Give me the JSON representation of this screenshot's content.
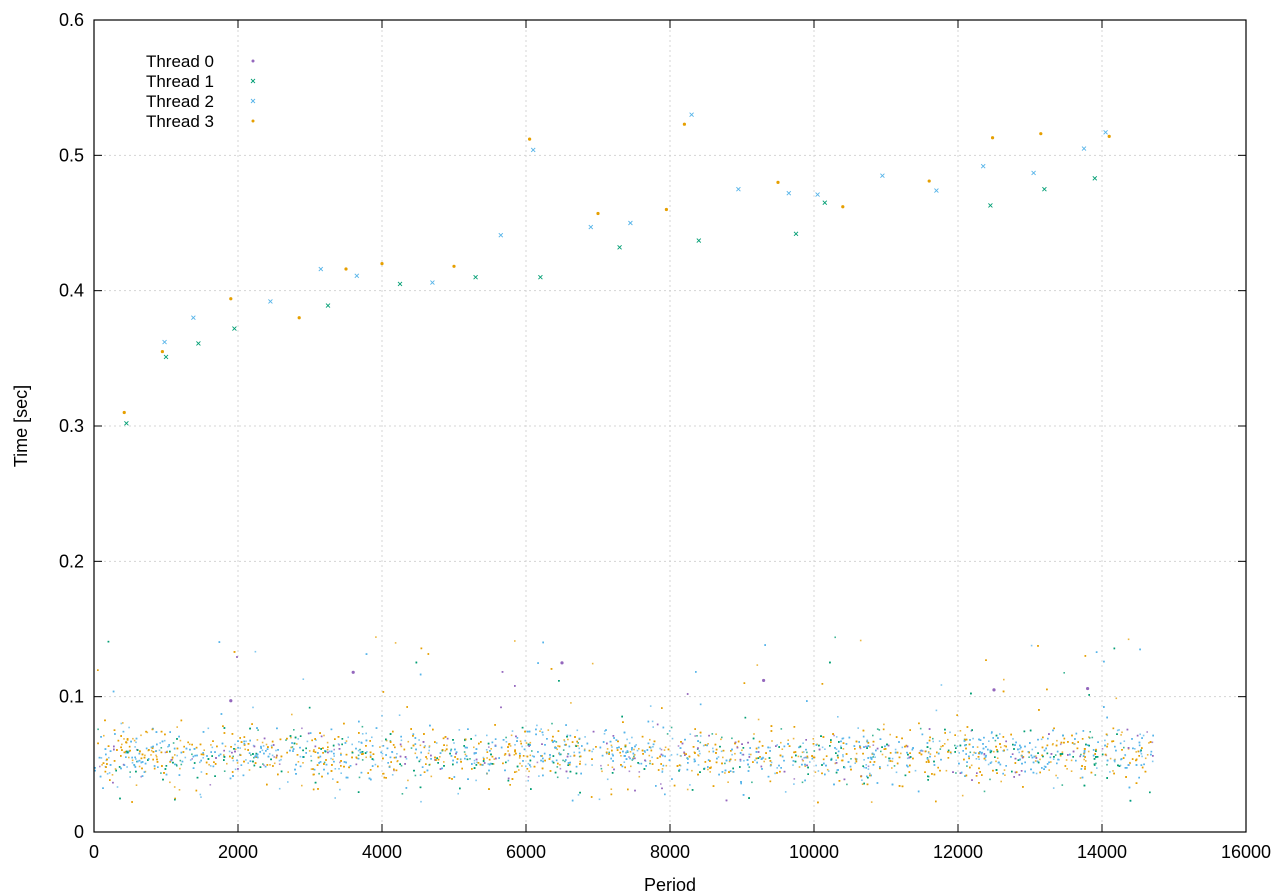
{
  "chart_data": {
    "type": "scatter",
    "title": "",
    "xlabel": "Period",
    "ylabel": "Time [sec]",
    "xlim": [
      0,
      16000
    ],
    "ylim": [
      0,
      0.6
    ],
    "xticks": [
      "0",
      "2000",
      "4000",
      "6000",
      "8000",
      "10000",
      "12000",
      "14000",
      "16000"
    ],
    "yticks": [
      "0",
      "0.1",
      "0.2",
      "0.3",
      "0.4",
      "0.5",
      "0.6"
    ],
    "grid": true,
    "legend_position": "top-left",
    "band": {
      "x_range": [
        0,
        14700
      ],
      "center": 0.058,
      "spread": 0.022
    },
    "series": [
      {
        "name": "Thread 0",
        "color": "#9467bd",
        "marker": "dot",
        "points": [
          [
            1900,
            0.097
          ],
          [
            3600,
            0.118
          ],
          [
            6500,
            0.125
          ],
          [
            9300,
            0.112
          ],
          [
            12500,
            0.105
          ],
          [
            13800,
            0.106
          ]
        ]
      },
      {
        "name": "Thread 1",
        "color": "#009e73",
        "marker": "x",
        "points": [
          [
            450,
            0.302
          ],
          [
            1000,
            0.351
          ],
          [
            1450,
            0.361
          ],
          [
            1950,
            0.372
          ],
          [
            3250,
            0.389
          ],
          [
            4250,
            0.405
          ],
          [
            5300,
            0.41
          ],
          [
            6200,
            0.41
          ],
          [
            7300,
            0.432
          ],
          [
            8400,
            0.437
          ],
          [
            9750,
            0.442
          ],
          [
            10150,
            0.465
          ],
          [
            12450,
            0.463
          ],
          [
            13200,
            0.475
          ],
          [
            13900,
            0.483
          ]
        ]
      },
      {
        "name": "Thread 2",
        "color": "#56b4e9",
        "marker": "x",
        "points": [
          [
            980,
            0.362
          ],
          [
            1380,
            0.38
          ],
          [
            2450,
            0.392
          ],
          [
            3150,
            0.416
          ],
          [
            3650,
            0.411
          ],
          [
            4700,
            0.406
          ],
          [
            5650,
            0.441
          ],
          [
            6100,
            0.504
          ],
          [
            6900,
            0.447
          ],
          [
            7450,
            0.45
          ],
          [
            8300,
            0.53
          ],
          [
            8950,
            0.475
          ],
          [
            9650,
            0.472
          ],
          [
            10050,
            0.471
          ],
          [
            10950,
            0.485
          ],
          [
            11700,
            0.474
          ],
          [
            12350,
            0.492
          ],
          [
            13050,
            0.487
          ],
          [
            13750,
            0.505
          ],
          [
            14050,
            0.517
          ]
        ]
      },
      {
        "name": "Thread 3",
        "color": "#e69f00",
        "marker": "dot",
        "points": [
          [
            420,
            0.31
          ],
          [
            950,
            0.355
          ],
          [
            1900,
            0.394
          ],
          [
            2850,
            0.38
          ],
          [
            3500,
            0.416
          ],
          [
            4000,
            0.42
          ],
          [
            5000,
            0.418
          ],
          [
            6050,
            0.512
          ],
          [
            7000,
            0.457
          ],
          [
            7950,
            0.46
          ],
          [
            8200,
            0.523
          ],
          [
            9500,
            0.48
          ],
          [
            10400,
            0.462
          ],
          [
            11600,
            0.481
          ],
          [
            12480,
            0.513
          ],
          [
            13150,
            0.516
          ],
          [
            14100,
            0.514
          ]
        ]
      }
    ]
  }
}
